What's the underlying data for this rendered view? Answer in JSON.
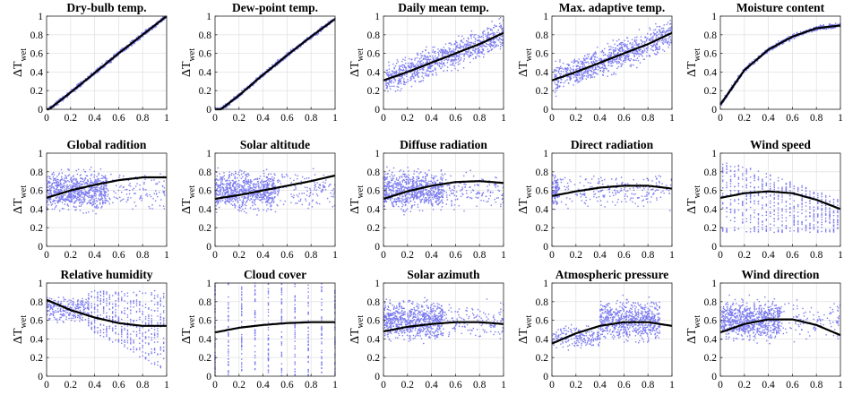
{
  "chart_data": {
    "type": "scatter",
    "ylabel_main": "ΔT",
    "ylabel_sub": "wet",
    "xlim": [
      0,
      1
    ],
    "ylim": [
      0,
      1
    ],
    "x_ticks": [
      "0",
      "0.2",
      "0.4",
      "0.6",
      "0.8",
      "1"
    ],
    "y_ticks": [
      "0",
      "0.2",
      "0.4",
      "0.6",
      "0.8",
      "1"
    ],
    "grid": true,
    "colors": {
      "points": "#7b7bef",
      "fit": "#000000"
    },
    "panels": [
      {
        "title": "Dry-bulb temp.",
        "pattern": "tight",
        "fit": [
          [
            0,
            -0.02
          ],
          [
            0.2,
            0.18
          ],
          [
            0.4,
            0.39
          ],
          [
            0.6,
            0.6
          ],
          [
            0.8,
            0.8
          ],
          [
            1,
            1.0
          ]
        ]
      },
      {
        "title": "Dew-point temp.",
        "pattern": "tight",
        "fit": [
          [
            0.05,
            0
          ],
          [
            0.2,
            0.15
          ],
          [
            0.4,
            0.37
          ],
          [
            0.6,
            0.58
          ],
          [
            0.8,
            0.78
          ],
          [
            1,
            0.97
          ]
        ]
      },
      {
        "title": "Daily mean temp.",
        "pattern": "wide",
        "fit": [
          [
            0,
            0.31
          ],
          [
            0.2,
            0.4
          ],
          [
            0.4,
            0.5
          ],
          [
            0.6,
            0.6
          ],
          [
            0.8,
            0.7
          ],
          [
            1,
            0.82
          ]
        ]
      },
      {
        "title": "Max. adaptive temp.",
        "pattern": "wide",
        "fit": [
          [
            0,
            0.31
          ],
          [
            0.2,
            0.4
          ],
          [
            0.4,
            0.5
          ],
          [
            0.6,
            0.6
          ],
          [
            0.8,
            0.7
          ],
          [
            1,
            0.82
          ]
        ]
      },
      {
        "title": "Moisture content",
        "pattern": "tight",
        "fit": [
          [
            0,
            0.05
          ],
          [
            0.2,
            0.42
          ],
          [
            0.4,
            0.64
          ],
          [
            0.6,
            0.78
          ],
          [
            0.8,
            0.87
          ],
          [
            1,
            0.9
          ]
        ]
      },
      {
        "title": "Global radition",
        "pattern": "band",
        "fit": [
          [
            0,
            0.52
          ],
          [
            0.2,
            0.6
          ],
          [
            0.4,
            0.66
          ],
          [
            0.6,
            0.71
          ],
          [
            0.8,
            0.74
          ],
          [
            1,
            0.74
          ]
        ]
      },
      {
        "title": "Solar altitude",
        "pattern": "band",
        "fit": [
          [
            0,
            0.51
          ],
          [
            0.2,
            0.55
          ],
          [
            0.4,
            0.6
          ],
          [
            0.6,
            0.65
          ],
          [
            0.8,
            0.7
          ],
          [
            1,
            0.76
          ]
        ]
      },
      {
        "title": "Diffuse radiation",
        "pattern": "band",
        "fit": [
          [
            0,
            0.51
          ],
          [
            0.2,
            0.59
          ],
          [
            0.4,
            0.65
          ],
          [
            0.6,
            0.69
          ],
          [
            0.8,
            0.7
          ],
          [
            1,
            0.68
          ]
        ]
      },
      {
        "title": "Direct radiation",
        "pattern": "sparse",
        "fit": [
          [
            0,
            0.54
          ],
          [
            0.2,
            0.59
          ],
          [
            0.4,
            0.63
          ],
          [
            0.6,
            0.65
          ],
          [
            0.8,
            0.65
          ],
          [
            1,
            0.62
          ]
        ]
      },
      {
        "title": "Wind speed",
        "pattern": "columns",
        "fit": [
          [
            0,
            0.52
          ],
          [
            0.2,
            0.57
          ],
          [
            0.4,
            0.59
          ],
          [
            0.6,
            0.57
          ],
          [
            0.8,
            0.5
          ],
          [
            1,
            0.4
          ]
        ]
      },
      {
        "title": "Relative humidity",
        "pattern": "fan",
        "fit": [
          [
            0,
            0.82
          ],
          [
            0.2,
            0.71
          ],
          [
            0.4,
            0.63
          ],
          [
            0.6,
            0.57
          ],
          [
            0.8,
            0.54
          ],
          [
            1,
            0.54
          ]
        ]
      },
      {
        "title": "Cloud cover",
        "pattern": "bars",
        "fit": [
          [
            0,
            0.47
          ],
          [
            0.2,
            0.52
          ],
          [
            0.4,
            0.55
          ],
          [
            0.6,
            0.57
          ],
          [
            0.8,
            0.58
          ],
          [
            1,
            0.58
          ]
        ]
      },
      {
        "title": "Solar azimuth",
        "pattern": "band",
        "fit": [
          [
            0,
            0.48
          ],
          [
            0.2,
            0.53
          ],
          [
            0.4,
            0.56
          ],
          [
            0.6,
            0.58
          ],
          [
            0.8,
            0.58
          ],
          [
            1,
            0.56
          ]
        ]
      },
      {
        "title": "Atmospheric pressure",
        "pattern": "cluster",
        "fit": [
          [
            0,
            0.35
          ],
          [
            0.2,
            0.46
          ],
          [
            0.4,
            0.54
          ],
          [
            0.6,
            0.58
          ],
          [
            0.8,
            0.58
          ],
          [
            1,
            0.54
          ]
        ]
      },
      {
        "title": "Wind direction",
        "pattern": "band",
        "fit": [
          [
            0,
            0.47
          ],
          [
            0.2,
            0.56
          ],
          [
            0.4,
            0.61
          ],
          [
            0.6,
            0.61
          ],
          [
            0.8,
            0.55
          ],
          [
            1,
            0.44
          ]
        ]
      }
    ]
  }
}
